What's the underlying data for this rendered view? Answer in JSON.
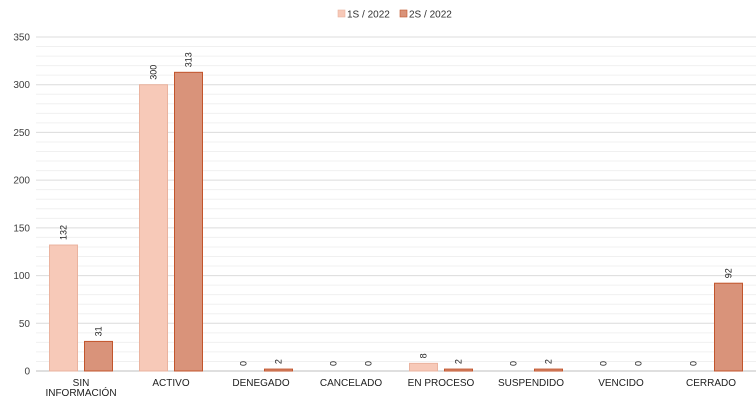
{
  "chart_data": {
    "type": "bar",
    "categories": [
      [
        "SIN",
        "INFORMACIÓN"
      ],
      [
        "ACTIVO"
      ],
      [
        "DENEGADO"
      ],
      [
        "CANCELADO"
      ],
      [
        "EN PROCESO"
      ],
      [
        "SUSPENDIDO"
      ],
      [
        "VENCIDO"
      ],
      [
        "CERRADO"
      ]
    ],
    "series": [
      {
        "name": "1S / 2022",
        "color": "#f7c9b8",
        "border": "#eab39f",
        "values": [
          132,
          300,
          0,
          0,
          8,
          0,
          0,
          0
        ]
      },
      {
        "name": "2S / 2022",
        "color": "#d9937a",
        "border": "#c2552c",
        "values": [
          31,
          313,
          2,
          0,
          2,
          2,
          0,
          92
        ]
      }
    ],
    "ylim": [
      0,
      350
    ],
    "yticks": [
      0,
      50,
      100,
      150,
      200,
      250,
      300,
      350
    ],
    "minor_step": 10,
    "grid": true,
    "legend_position": "top-center",
    "xlabel": "",
    "ylabel": "",
    "title": ""
  }
}
